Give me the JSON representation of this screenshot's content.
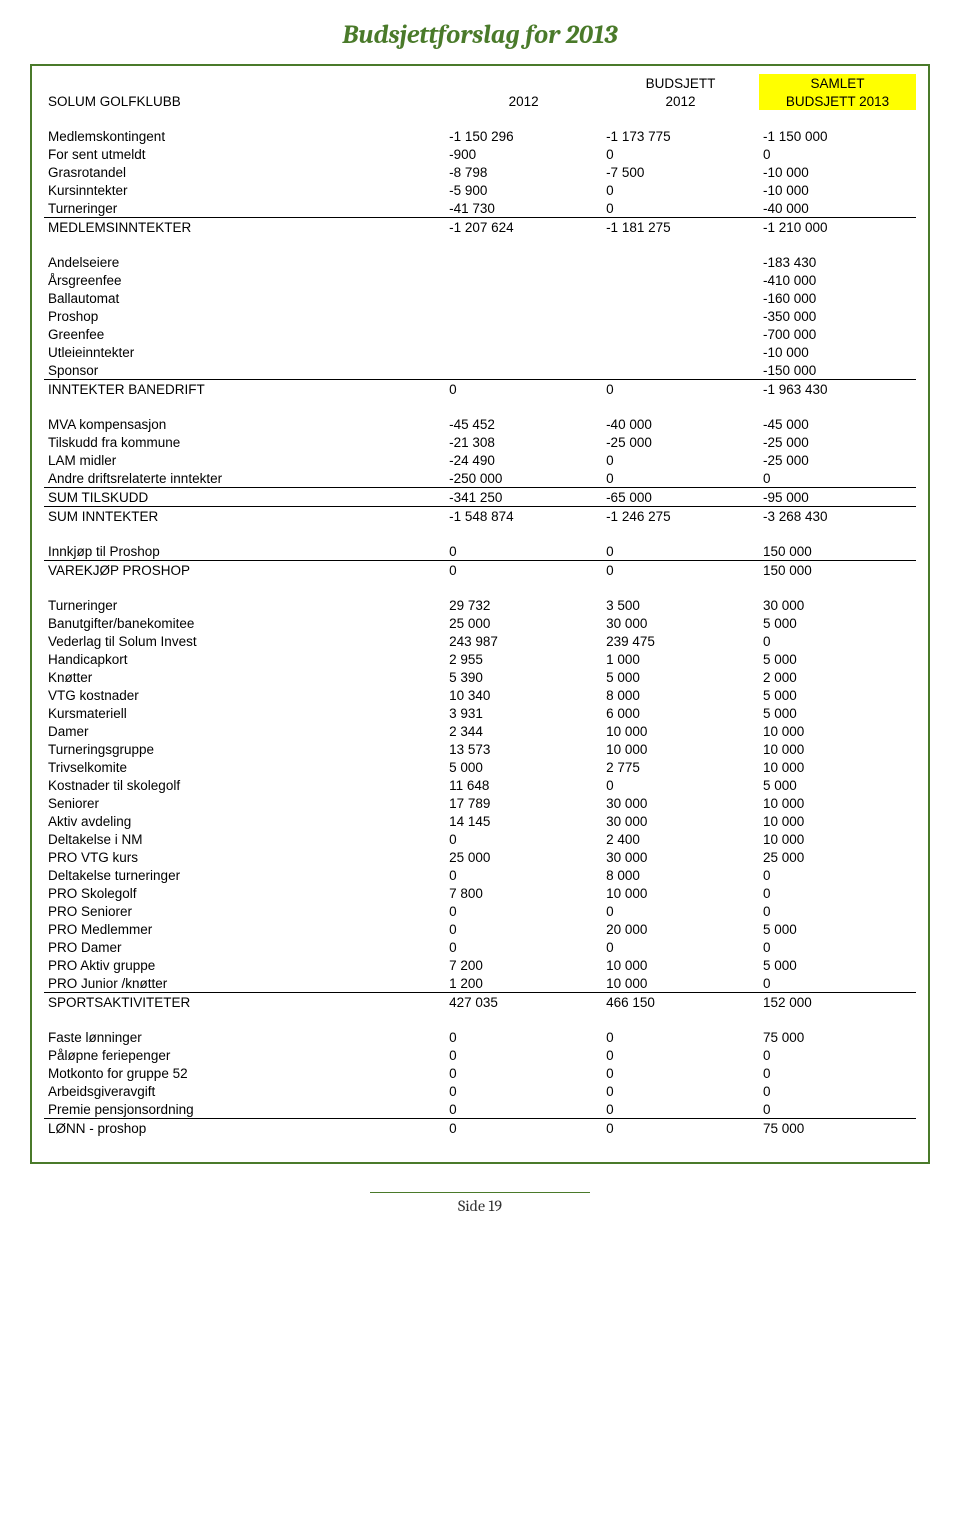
{
  "title": "Budsjettforslag for 2013",
  "header": {
    "left": "SOLUM GOLFKLUBB",
    "col1_line1": "",
    "col1_line2": "2012",
    "col2_line1": "BUDSJETT",
    "col2_line2": "2012",
    "col3_line1": "SAMLET",
    "col3_line2": "BUDSJETT 2013"
  },
  "footer": "Side 19",
  "sections": [
    {
      "rows": [
        {
          "label": "Medlemskontingent",
          "a": "-1 150 296",
          "b": "-1 173 775",
          "c": "-1 150 000"
        },
        {
          "label": "For sent utmeldt",
          "a": "-900",
          "b": "0",
          "c": "0"
        },
        {
          "label": "Grasrotandel",
          "a": "-8 798",
          "b": "-7 500",
          "c": "-10 000"
        },
        {
          "label": "Kursinntekter",
          "a": "-5 900",
          "b": "0",
          "c": "-10 000"
        },
        {
          "label": "Turneringer",
          "a": "-41 730",
          "b": "0",
          "c": "-40 000"
        }
      ],
      "total": {
        "label": "MEDLEMSINNTEKTER",
        "a": "-1 207 624",
        "b": "-1 181 275",
        "c": "-1 210 000"
      }
    },
    {
      "rows": [
        {
          "label": "Andelseiere",
          "a": "",
          "b": "",
          "c": "-183 430"
        },
        {
          "label": "Årsgreenfee",
          "a": "",
          "b": "",
          "c": "-410 000"
        },
        {
          "label": "Ballautomat",
          "a": "",
          "b": "",
          "c": "-160 000"
        },
        {
          "label": "Proshop",
          "a": "",
          "b": "",
          "c": "-350 000"
        },
        {
          "label": "Greenfee",
          "a": "",
          "b": "",
          "c": "-700 000"
        },
        {
          "label": "Utleieinntekter",
          "a": "",
          "b": "",
          "c": "-10 000"
        },
        {
          "label": "Sponsor",
          "a": "",
          "b": "",
          "c": "-150 000"
        }
      ],
      "total": {
        "label": "INNTEKTER BANEDRIFT",
        "a": "0",
        "b": "0",
        "c": "-1 963 430"
      }
    },
    {
      "rows": [
        {
          "label": "MVA kompensasjon",
          "a": "-45 452",
          "b": "-40 000",
          "c": "-45 000"
        },
        {
          "label": "Tilskudd fra kommune",
          "a": "-21 308",
          "b": "-25 000",
          "c": "-25 000"
        },
        {
          "label": "LAM midler",
          "a": "-24 490",
          "b": "0",
          "c": "-25 000"
        },
        {
          "label": "Andre driftsrelaterte inntekter",
          "a": "-250 000",
          "b": "0",
          "c": "0"
        }
      ],
      "total": {
        "label": "SUM TILSKUDD",
        "a": "-341 250",
        "b": "-65 000",
        "c": "-95 000"
      },
      "grand": {
        "label": "SUM INNTEKTER",
        "a": "-1 548 874",
        "b": "-1 246 275",
        "c": "-3 268 430"
      }
    },
    {
      "rows": [
        {
          "label": "Innkjøp til Proshop",
          "a": "0",
          "b": "0",
          "c": "150 000"
        }
      ],
      "total": {
        "label": "VAREKJØP PROSHOP",
        "a": "0",
        "b": "0",
        "c": "150 000"
      }
    },
    {
      "rows": [
        {
          "label": "Turneringer",
          "a": "29 732",
          "b": "3 500",
          "c": "30 000"
        },
        {
          "label": "Banutgifter/banekomitee",
          "a": "25 000",
          "b": "30 000",
          "c": "5 000"
        },
        {
          "label": "Vederlag til Solum Invest",
          "a": "243 987",
          "b": "239 475",
          "c": "0"
        },
        {
          "label": "Handicapkort",
          "a": "2 955",
          "b": "1 000",
          "c": "5 000"
        },
        {
          "label": "Knøtter",
          "a": "5 390",
          "b": "5 000",
          "c": "2 000"
        },
        {
          "label": "VTG kostnader",
          "a": "10 340",
          "b": "8 000",
          "c": "5 000"
        },
        {
          "label": "Kursmateriell",
          "a": "3 931",
          "b": "6 000",
          "c": "5 000"
        },
        {
          "label": "Damer",
          "a": "2 344",
          "b": "10 000",
          "c": "10 000"
        },
        {
          "label": "Turneringsgruppe",
          "a": "13 573",
          "b": "10 000",
          "c": "10 000"
        },
        {
          "label": "Trivselkomite",
          "a": "5 000",
          "b": "2 775",
          "c": "10 000"
        },
        {
          "label": "Kostnader til skolegolf",
          "a": "11 648",
          "b": "0",
          "c": "5 000"
        },
        {
          "label": "Seniorer",
          "a": "17 789",
          "b": "30 000",
          "c": "10 000"
        },
        {
          "label": "Aktiv avdeling",
          "a": "14 145",
          "b": "30 000",
          "c": "10 000"
        },
        {
          "label": "Deltakelse i NM",
          "a": "0",
          "b": "2 400",
          "c": "10 000"
        },
        {
          "label": "PRO VTG  kurs",
          "a": "25 000",
          "b": "30 000",
          "c": "25 000"
        },
        {
          "label": "Deltakelse turneringer",
          "a": "0",
          "b": "8 000",
          "c": "0"
        },
        {
          "label": "PRO Skolegolf",
          "a": "7 800",
          "b": "10 000",
          "c": "0"
        },
        {
          "label": "PRO Seniorer",
          "a": "0",
          "b": "0",
          "c": "0"
        },
        {
          "label": "PRO Medlemmer",
          "a": "0",
          "b": "20 000",
          "c": "5 000"
        },
        {
          "label": "PRO Damer",
          "a": "0",
          "b": "0",
          "c": "0"
        },
        {
          "label": "PRO Aktiv gruppe",
          "a": "7 200",
          "b": "10 000",
          "c": "5 000"
        },
        {
          "label": "PRO Junior /knøtter",
          "a": "1 200",
          "b": "10 000",
          "c": "0"
        }
      ],
      "total": {
        "label": "SPORTSAKTIVITETER",
        "a": "427 035",
        "b": "466 150",
        "c": "152 000"
      }
    },
    {
      "rows": [
        {
          "label": "Faste lønninger",
          "a": "0",
          "b": "0",
          "c": "75 000"
        },
        {
          "label": "Påløpne feriepenger",
          "a": "0",
          "b": "0",
          "c": "0"
        },
        {
          "label": "Motkonto for gruppe 52",
          "a": "0",
          "b": "0",
          "c": "0"
        },
        {
          "label": "Arbeidsgiveravgift",
          "a": "0",
          "b": "0",
          "c": "0"
        },
        {
          "label": "Premie pensjonsordning",
          "a": "0",
          "b": "0",
          "c": "0"
        }
      ],
      "total": {
        "label": "LØNN - proshop",
        "a": "0",
        "b": "0",
        "c": "75 000"
      }
    }
  ]
}
